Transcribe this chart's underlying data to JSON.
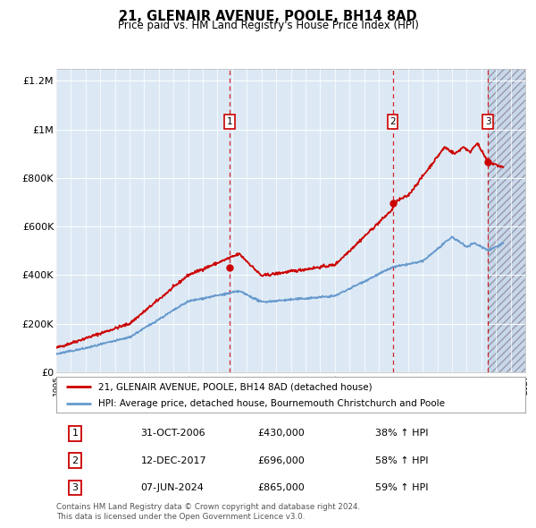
{
  "title": "21, GLENAIR AVENUE, POOLE, BH14 8AD",
  "subtitle": "Price paid vs. HM Land Registry's House Price Index (HPI)",
  "red_line_label": "21, GLENAIR AVENUE, POOLE, BH14 8AD (detached house)",
  "blue_line_label": "HPI: Average price, detached house, Bournemouth Christchurch and Poole",
  "footer_line1": "Contains HM Land Registry data © Crown copyright and database right 2024.",
  "footer_line2": "This data is licensed under the Open Government Licence v3.0.",
  "transactions": [
    {
      "num": 1,
      "date": "31-OCT-2006",
      "price": 430000,
      "pct": "38%",
      "year": 2006.83
    },
    {
      "num": 2,
      "date": "12-DEC-2017",
      "price": 696000,
      "pct": "58%",
      "year": 2017.95
    },
    {
      "num": 3,
      "date": "07-JUN-2024",
      "price": 865000,
      "pct": "59%",
      "year": 2024.44
    }
  ],
  "xmin": 1995.0,
  "xmax": 2027.0,
  "ymin": 0,
  "ymax": 1250000,
  "yticks": [
    0,
    200000,
    400000,
    600000,
    800000,
    1000000,
    1200000
  ],
  "ytick_labels": [
    "£0",
    "£200K",
    "£400K",
    "£600K",
    "£800K",
    "£1M",
    "£1.2M"
  ],
  "background_color": "#ffffff",
  "plot_bg_color": "#dce9f5",
  "grid_color": "#ffffff",
  "red_color": "#cc0000",
  "blue_color": "#6699cc"
}
